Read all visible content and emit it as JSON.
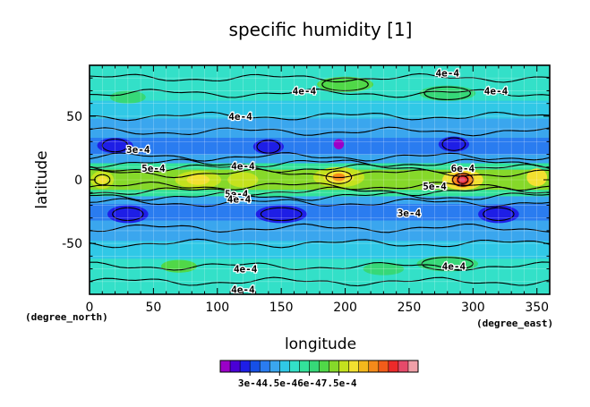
{
  "chart_data": {
    "type": "heatmap",
    "title": "specific humidity [1]",
    "xlabel": "longitude",
    "ylabel": "latitude",
    "x_unit": "(degree_east)",
    "y_unit": "(degree_north)",
    "xlim": [
      0,
      360
    ],
    "ylim": [
      -90,
      90
    ],
    "x_ticks": [
      0,
      50,
      100,
      150,
      200,
      250,
      300,
      350
    ],
    "y_ticks": [
      -50,
      0,
      50
    ],
    "grid": true,
    "contour_labels": [
      {
        "text": "4e-4",
        "lon": 280,
        "lat": 84
      },
      {
        "text": "4e-4",
        "lon": 318,
        "lat": 70
      },
      {
        "text": "4e-4",
        "lon": 168,
        "lat": 70
      },
      {
        "text": "4e-4",
        "lon": 118,
        "lat": 50
      },
      {
        "text": "3e-4",
        "lon": 38,
        "lat": 24
      },
      {
        "text": "5e-4",
        "lon": 50,
        "lat": 9
      },
      {
        "text": "4e-4",
        "lon": 120,
        "lat": 11
      },
      {
        "text": "6e-4",
        "lon": 292,
        "lat": 9
      },
      {
        "text": "5e-4",
        "lon": 270,
        "lat": -5
      },
      {
        "text": "5e-4",
        "lon": 115,
        "lat": -11
      },
      {
        "text": "4e-4",
        "lon": 117,
        "lat": -15
      },
      {
        "text": "3e-4",
        "lon": 250,
        "lat": -26
      },
      {
        "text": "4e-4",
        "lon": 122,
        "lat": -70
      },
      {
        "text": "4e-4",
        "lon": 285,
        "lat": -68
      },
      {
        "text": "4e-4",
        "lon": 120,
        "lat": -86
      }
    ],
    "colorbar": {
      "colors": [
        "#9b00c8",
        "#4a00d6",
        "#1e1ee6",
        "#1650e6",
        "#2a7cf0",
        "#3aa6ee",
        "#30c8e6",
        "#33e0c8",
        "#33e29a",
        "#36d878",
        "#50d848",
        "#86d82a",
        "#c4e21e",
        "#f2e030",
        "#f4b81c",
        "#f48a1a",
        "#f25c1a",
        "#ec2a2a",
        "#e64a6a",
        "#f0a0a8"
      ],
      "tick_labels": [
        "3e-4",
        "4.5e-4",
        "6e-4",
        "7.5e-4"
      ]
    }
  }
}
